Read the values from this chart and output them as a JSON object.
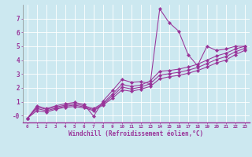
{
  "xlabel": "Windchill (Refroidissement éolien,°C)",
  "bg_color": "#cce8f0",
  "line_color": "#993399",
  "grid_color": "#ffffff",
  "xlim": [
    -0.5,
    23.5
  ],
  "ylim": [
    -0.5,
    8.0
  ],
  "xticks": [
    0,
    1,
    2,
    3,
    4,
    5,
    6,
    7,
    8,
    9,
    10,
    11,
    12,
    13,
    14,
    15,
    16,
    17,
    18,
    19,
    20,
    21,
    22,
    23
  ],
  "yticks": [
    0,
    1,
    2,
    3,
    4,
    5,
    6,
    7
  ],
  "ytick_labels": [
    "-0",
    "1",
    "2",
    "3",
    "4",
    "5",
    "6",
    "7"
  ],
  "series1": [
    [
      0,
      -0.2
    ],
    [
      1,
      0.7
    ],
    [
      2,
      0.5
    ],
    [
      3,
      0.7
    ],
    [
      4,
      0.85
    ],
    [
      5,
      0.95
    ],
    [
      6,
      0.8
    ],
    [
      7,
      -0.05
    ],
    [
      8,
      1.05
    ],
    [
      9,
      1.8
    ],
    [
      10,
      2.6
    ],
    [
      11,
      2.4
    ],
    [
      12,
      2.45
    ],
    [
      13,
      2.3
    ],
    [
      14,
      7.7
    ],
    [
      15,
      6.7
    ],
    [
      16,
      6.1
    ],
    [
      17,
      4.4
    ],
    [
      18,
      3.6
    ],
    [
      19,
      5.0
    ],
    [
      20,
      4.7
    ],
    [
      21,
      4.8
    ],
    [
      22,
      5.0
    ],
    [
      23,
      5.0
    ]
  ],
  "series2": [
    [
      0,
      -0.2
    ],
    [
      1,
      0.6
    ],
    [
      2,
      0.45
    ],
    [
      3,
      0.6
    ],
    [
      4,
      0.75
    ],
    [
      5,
      0.85
    ],
    [
      6,
      0.7
    ],
    [
      7,
      0.5
    ],
    [
      8,
      0.9
    ],
    [
      9,
      1.55
    ],
    [
      10,
      2.25
    ],
    [
      11,
      2.1
    ],
    [
      12,
      2.2
    ],
    [
      13,
      2.5
    ],
    [
      14,
      3.2
    ],
    [
      15,
      3.25
    ],
    [
      16,
      3.35
    ],
    [
      17,
      3.5
    ],
    [
      18,
      3.7
    ],
    [
      19,
      4.0
    ],
    [
      20,
      4.3
    ],
    [
      21,
      4.5
    ],
    [
      22,
      4.8
    ],
    [
      23,
      5.0
    ]
  ],
  "series3": [
    [
      0,
      -0.2
    ],
    [
      1,
      0.35
    ],
    [
      2,
      0.25
    ],
    [
      3,
      0.45
    ],
    [
      4,
      0.6
    ],
    [
      5,
      0.65
    ],
    [
      6,
      0.55
    ],
    [
      7,
      0.35
    ],
    [
      8,
      0.75
    ],
    [
      9,
      1.25
    ],
    [
      10,
      1.85
    ],
    [
      11,
      1.75
    ],
    [
      12,
      1.9
    ],
    [
      13,
      2.1
    ],
    [
      14,
      2.65
    ],
    [
      15,
      2.8
    ],
    [
      16,
      2.9
    ],
    [
      17,
      3.05
    ],
    [
      18,
      3.25
    ],
    [
      19,
      3.5
    ],
    [
      20,
      3.8
    ],
    [
      21,
      4.0
    ],
    [
      22,
      4.4
    ],
    [
      23,
      4.7
    ]
  ],
  "series4": [
    [
      0,
      -0.2
    ],
    [
      1,
      0.5
    ],
    [
      2,
      0.35
    ],
    [
      3,
      0.52
    ],
    [
      4,
      0.67
    ],
    [
      5,
      0.75
    ],
    [
      6,
      0.62
    ],
    [
      7,
      0.42
    ],
    [
      8,
      0.82
    ],
    [
      9,
      1.4
    ],
    [
      10,
      2.05
    ],
    [
      11,
      1.92
    ],
    [
      12,
      2.05
    ],
    [
      13,
      2.3
    ],
    [
      14,
      2.92
    ],
    [
      15,
      3.02
    ],
    [
      16,
      3.12
    ],
    [
      17,
      3.27
    ],
    [
      18,
      3.47
    ],
    [
      19,
      3.75
    ],
    [
      20,
      4.05
    ],
    [
      21,
      4.25
    ],
    [
      22,
      4.6
    ],
    [
      23,
      4.85
    ]
  ]
}
